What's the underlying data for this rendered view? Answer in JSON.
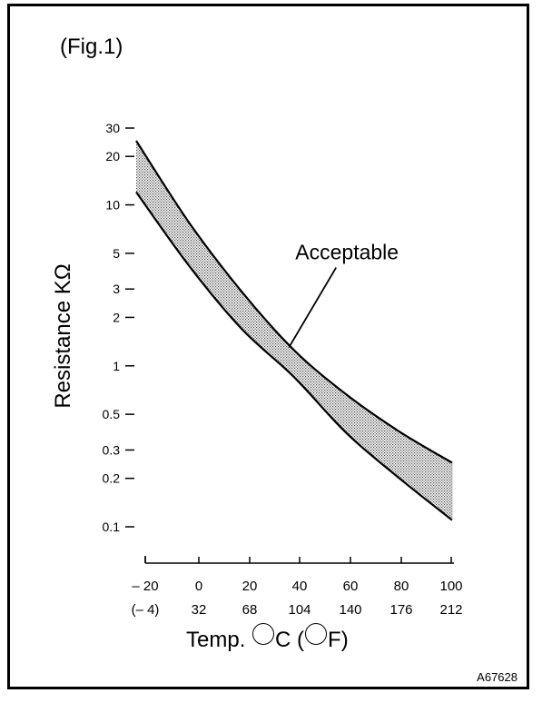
{
  "figure": {
    "title": "(Fig.1)",
    "code": "A67628"
  },
  "chart_data": {
    "type": "area",
    "title": "(Fig.1)",
    "ylabel": "Resistance KΩ",
    "xlabel": {
      "prefix": "Temp.",
      "celsius_unit": "C",
      "fahrenheit_unit": "F"
    },
    "y_scale": "log",
    "ylim": [
      0.1,
      30
    ],
    "y_ticks": [
      0.1,
      0.2,
      0.3,
      0.5,
      1,
      2,
      3,
      5,
      10,
      20,
      30
    ],
    "y_tick_labels": [
      "0.1",
      "0.2",
      "0.3",
      "0.5",
      "1",
      "2",
      "3",
      "5",
      "10",
      "20",
      "30"
    ],
    "xlim": [
      -20,
      100
    ],
    "x_ticks": [
      -20,
      0,
      20,
      40,
      60,
      80,
      100
    ],
    "x_tick_labels_c": [
      "– 20",
      "0",
      "20",
      "40",
      "60",
      "80",
      "100"
    ],
    "x_tick_labels_f": [
      "(– 4)",
      "32",
      "68",
      "104",
      "140",
      "176",
      "212"
    ],
    "series": [
      {
        "x": [
          -20,
          0,
          20,
          40,
          60,
          80,
          100
        ],
        "values": [
          25,
          7.8,
          2.9,
          1.25,
          0.66,
          0.39,
          0.25
        ]
      },
      {
        "x": [
          -20,
          0,
          20,
          40,
          60,
          80,
          100
        ],
        "values": [
          12,
          4.2,
          1.7,
          0.85,
          0.38,
          0.2,
          0.11
        ]
      }
    ],
    "annotation": {
      "text": "Acceptable",
      "x": 38,
      "y": 1.3
    },
    "grid": false
  }
}
